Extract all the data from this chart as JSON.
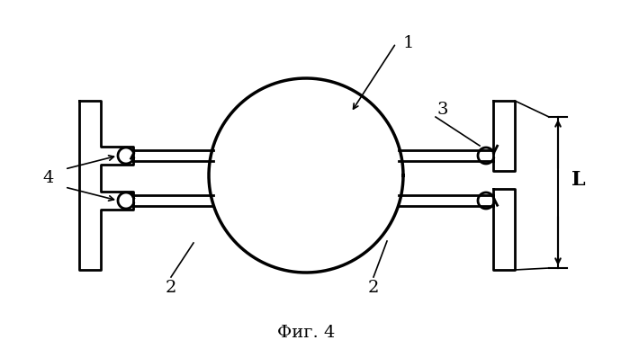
{
  "title": "Фиг. 4",
  "label_1": "1",
  "label_2": "2",
  "label_3": "3",
  "label_4": "4",
  "label_L": "L",
  "bg_color": "#ffffff",
  "line_color": "#000000",
  "lw_main": 2.0,
  "lw_thick": 2.5,
  "fig_width": 7.0,
  "fig_height": 3.98,
  "dpi": 100
}
